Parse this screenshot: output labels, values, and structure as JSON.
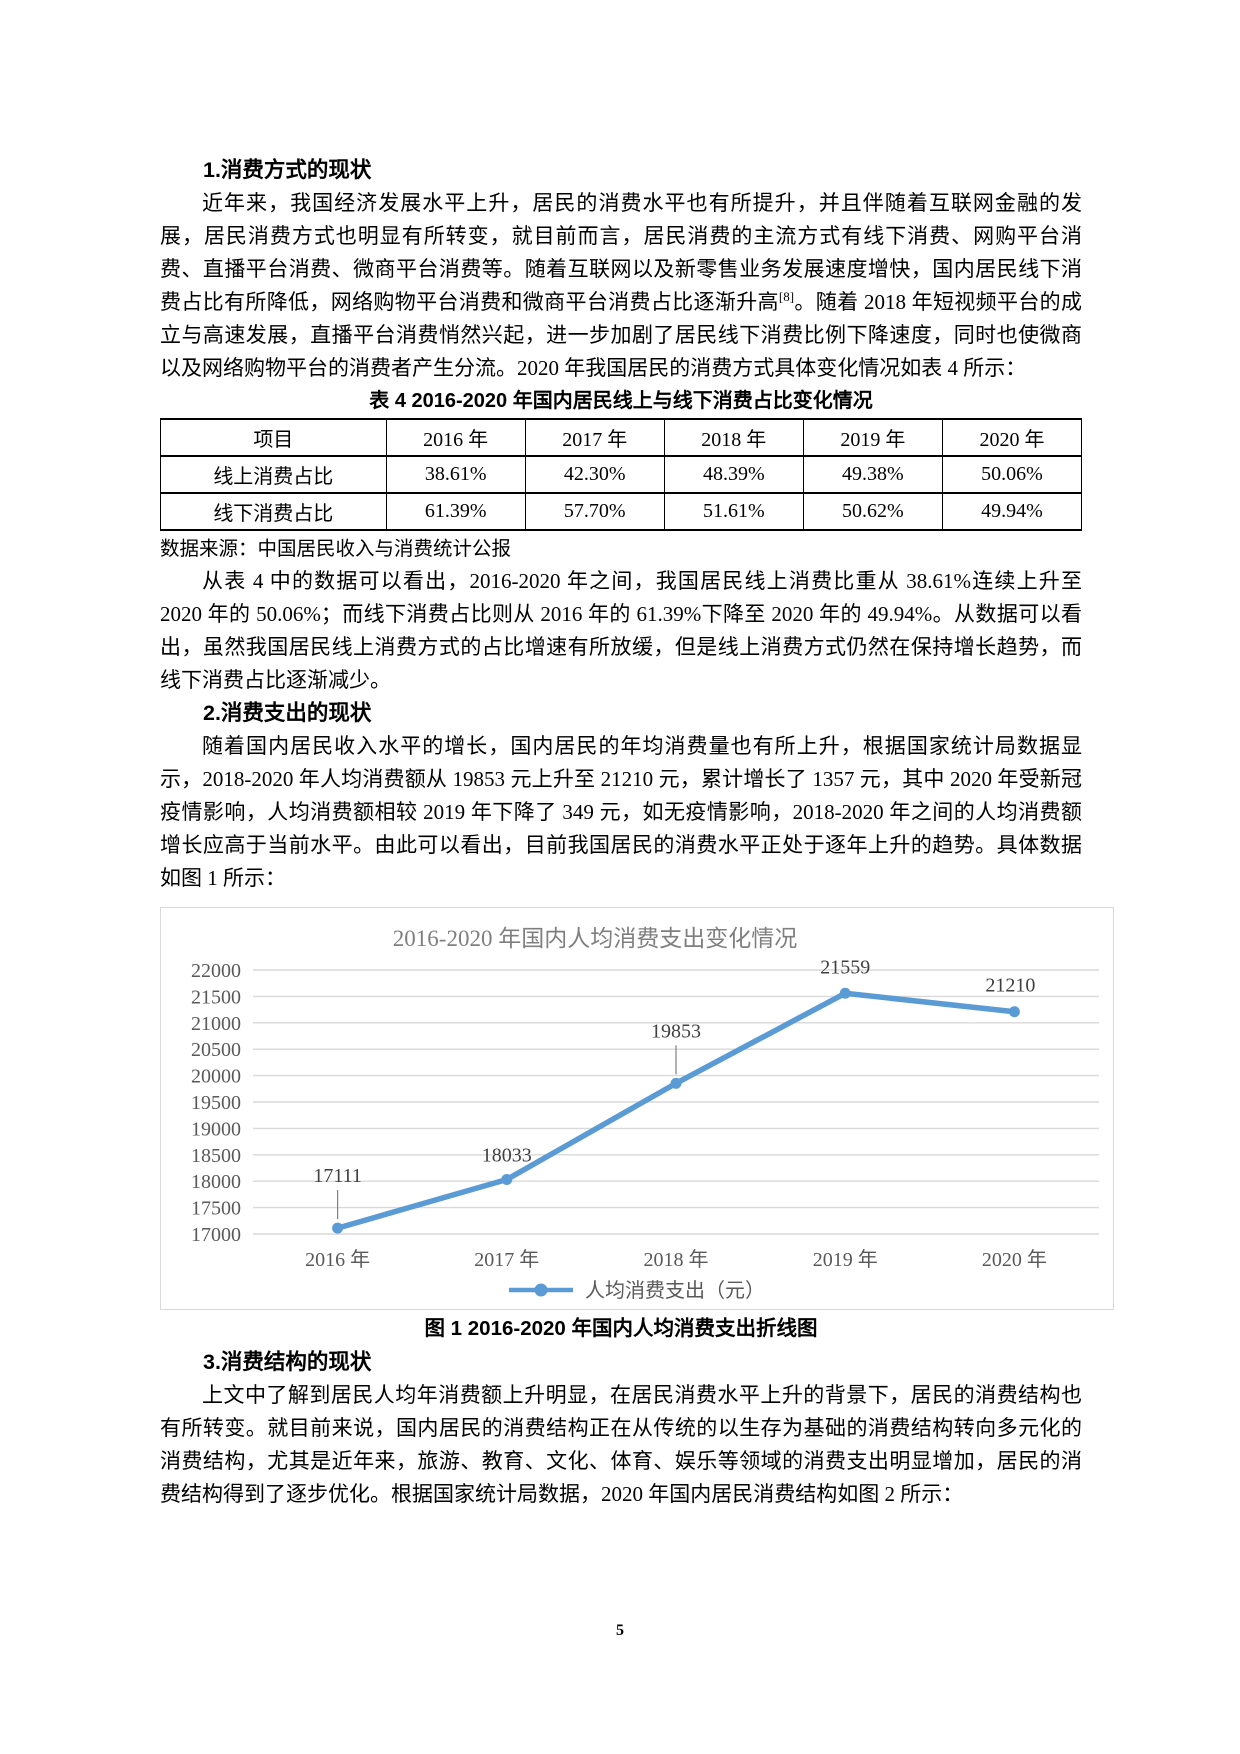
{
  "page": {
    "number": "5"
  },
  "sections": {
    "s1_heading": "1.消费方式的现状",
    "p1_part1": "近年来，我国经济发展水平上升，居民的消费水平也有所提升，并且伴随着互联网金融的发展，居民消费方式也明显有所转变，就目前而言，居民消费的主流方式有线下消费、网购平台消费、直播平台消费、微商平台消费等。随着互联网以及新零售业务发展速度增快，国内居民线下消费占比有所降低，网络购物平台消费和微商平台消费占比逐渐升高",
    "p1_sup": "[8]",
    "p1_part2": "。随着 2018 年短视频平台的成立与高速发展，直播平台消费悄然兴起，进一步加剧了居民线下消费比例下降速度，同时也使微商以及网络购物平台的消费者产生分流。2020 年我国居民的消费方式具体变化情况如表 4 所示：",
    "p2": "从表 4 中的数据可以看出，2016-2020 年之间，我国居民线上消费比重从 38.61%连续上升至 2020 年的 50.06%；而线下消费占比则从 2016 年的 61.39%下降至 2020 年的 49.94%。从数据可以看出，虽然我国居民线上消费方式的占比增速有所放缓，但是线上消费方式仍然在保持增长趋势，而线下消费占比逐渐减少。",
    "s2_heading": "2.消费支出的现状",
    "p3": "随着国内居民收入水平的增长，国内居民的年均消费量也有所上升，根据国家统计局数据显示，2018-2020 年人均消费额从 19853 元上升至 21210 元，累计增长了 1357 元，其中 2020 年受新冠疫情影响，人均消费额相较 2019 年下降了 349 元，如无疫情影响，2018-2020 年之间的人均消费额增长应高于当前水平。由此可以看出，目前我国居民的消费水平正处于逐年上升的趋势。具体数据如图 1 所示：",
    "s3_heading": "3.消费结构的现状",
    "p4": "上文中了解到居民人均年消费额上升明显，在居民消费水平上升的背景下，居民的消费结构也有所转变。就目前来说，国内居民的消费结构正在从传统的以生存为基础的消费结构转向多元化的消费结构，尤其是近年来，旅游、教育、文化、体育、娱乐等领域的消费支出明显增加，居民的消费结构得到了逐步优化。根据国家统计局数据，2020 年国内居民消费结构如图 2 所示："
  },
  "table": {
    "caption": "表 4 2016-2020 年国内居民线上与线下消费占比变化情况",
    "headers": [
      "项目",
      "2016 年",
      "2017 年",
      "2018 年",
      "2019 年",
      "2020 年"
    ],
    "rows": [
      {
        "label": "线上消费占比",
        "values": [
          "38.61%",
          "42.30%",
          "48.39%",
          "49.38%",
          "50.06%"
        ]
      },
      {
        "label": "线下消费占比",
        "values": [
          "61.39%",
          "57.70%",
          "51.61%",
          "50.62%",
          "49.94%"
        ]
      }
    ],
    "source": "数据来源：中国居民收入与消费统计公报"
  },
  "figure1_caption": "图 1 2016-2020 年国内人均消费支出折线图",
  "chart_data": {
    "type": "line",
    "title": "2016-2020 年国内人均消费支出变化情况",
    "categories": [
      "2016 年",
      "2017 年",
      "2018 年",
      "2019 年",
      "2020 年"
    ],
    "series": [
      {
        "name": "人均消费支出（元）",
        "values": [
          17111,
          18033,
          19853,
          21559,
          21210
        ]
      }
    ],
    "ylim": [
      17000,
      22000
    ],
    "ytick_step": 500,
    "grid": true,
    "legend_position": "bottom",
    "line_color": "#5B9BD5",
    "grid_color": "#D9D9D9",
    "axis_text_color": "#595959",
    "title_color": "#7F7F7F",
    "data_label_color": "#404040"
  }
}
